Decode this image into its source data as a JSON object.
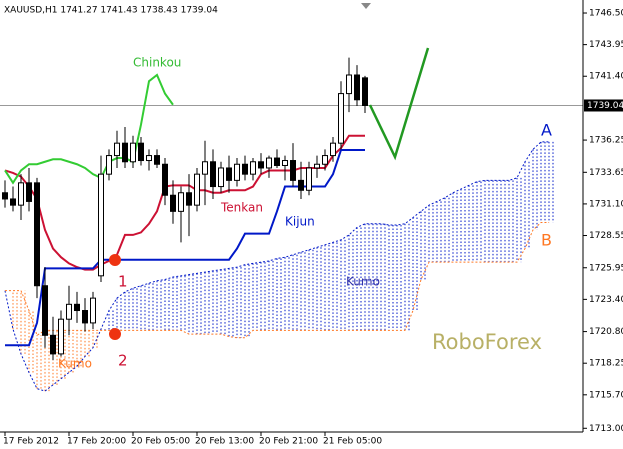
{
  "chart_data": {
    "type": "candlestick",
    "title": "XAUUSD,H1 1741.27 1741.43 1738.43 1739.04",
    "categories": [
      "17 Feb 2012",
      null,
      null,
      null,
      null,
      null,
      null,
      null,
      "17 Feb 20:00",
      null,
      null,
      null,
      null,
      null,
      null,
      null,
      "20 Feb 05:00",
      null,
      null,
      null,
      null,
      null,
      null,
      null,
      "20 Feb 13:00",
      null,
      null,
      null,
      null,
      null,
      null,
      null,
      "20 Feb 21:00",
      null,
      null,
      null,
      null,
      null,
      null,
      null,
      "21 Feb 05:00",
      null,
      null,
      null,
      null,
      null,
      null,
      null,
      null,
      null,
      null,
      null,
      null,
      null,
      null,
      null,
      null,
      null,
      null,
      null,
      null,
      null,
      null,
      null,
      null,
      null,
      null,
      null,
      null
    ],
    "candles": {
      "open": [
        1732.0,
        1731.5,
        1731.0,
        1732.8,
        1732.8,
        1724.5,
        1720.5,
        1719.0,
        1721.8,
        1723.0,
        1722.5,
        1721.5,
        1725.3,
        1733.5,
        1735.0,
        1736.0,
        1734.5,
        1736.0,
        1734.6,
        1735.0,
        1734.3,
        1731.8,
        1730.5,
        1732.0,
        1731.0,
        1733.5,
        1734.5,
        1732.5,
        1734.0,
        1733.0,
        1734.3,
        1733.5,
        1734.5,
        1734.0,
        1734.8,
        1734.2,
        1734.6,
        1733.0,
        1732.2,
        1734.0,
        1734.3,
        1735.0,
        1736.0,
        1740.0,
        1741.5,
        1741.27
      ],
      "high": [
        1733.0,
        1732.5,
        1733.5,
        1734.0,
        1733.2,
        1726.0,
        1722.0,
        1722.5,
        1724.5,
        1724.0,
        1723.5,
        1724.0,
        1735.0,
        1735.5,
        1737.0,
        1737.3,
        1736.6,
        1736.5,
        1735.5,
        1735.5,
        1734.8,
        1733.0,
        1732.5,
        1733.5,
        1734.0,
        1736.2,
        1735.5,
        1734.5,
        1735.0,
        1734.8,
        1735.0,
        1734.8,
        1735.2,
        1735.0,
        1735.5,
        1735.0,
        1736.0,
        1734.5,
        1734.5,
        1735.0,
        1735.5,
        1736.5,
        1741.0,
        1742.9,
        1742.3,
        1741.43
      ],
      "low": [
        1730.8,
        1730.5,
        1729.8,
        1730.5,
        1723.5,
        1719.5,
        1718.5,
        1718.8,
        1720.5,
        1721.5,
        1720.8,
        1721.0,
        1724.8,
        1733.0,
        1734.0,
        1734.0,
        1734.0,
        1734.2,
        1733.8,
        1734.0,
        1731.0,
        1729.5,
        1728.0,
        1728.5,
        1730.5,
        1731.0,
        1731.5,
        1732.0,
        1732.0,
        1732.5,
        1733.0,
        1733.0,
        1733.5,
        1733.2,
        1734.0,
        1733.0,
        1732.5,
        1731.5,
        1731.8,
        1733.2,
        1733.8,
        1734.5,
        1735.5,
        1738.5,
        1739.0,
        1738.43
      ],
      "close": [
        1731.5,
        1731.0,
        1732.8,
        1731.3,
        1724.5,
        1720.5,
        1719.0,
        1721.8,
        1723.0,
        1722.5,
        1721.5,
        1723.5,
        1733.5,
        1735.0,
        1736.0,
        1734.5,
        1736.0,
        1734.6,
        1735.0,
        1734.3,
        1731.8,
        1730.5,
        1732.0,
        1731.0,
        1733.5,
        1734.5,
        1732.5,
        1734.0,
        1733.0,
        1734.3,
        1733.5,
        1734.5,
        1734.0,
        1734.8,
        1734.2,
        1734.6,
        1733.0,
        1732.2,
        1734.0,
        1734.3,
        1735.0,
        1736.0,
        1740.0,
        1741.5,
        1739.5,
        1739.04
      ]
    },
    "lines": [
      {
        "name": "Tenkan",
        "color": "#cc1133",
        "values": [
          1733.8,
          1733.6,
          1733.3,
          1732.5,
          1731.5,
          1729.0,
          1727.5,
          1726.8,
          1726.3,
          1726.0,
          1725.8,
          1725.8,
          1726.2,
          1726.5,
          1727.0,
          1728.6,
          1728.6,
          1728.8,
          1729.5,
          1730.5,
          1732.5,
          1732.6,
          1732.6,
          1732.6,
          1732.2,
          1732.2,
          1732.0,
          1732.0,
          1732.2,
          1732.2,
          1732.2,
          1732.5,
          1733.5,
          1733.8,
          1733.8,
          1733.8,
          1733.8,
          1734.0,
          1734.0,
          1734.0,
          1734.0,
          1735.0,
          1735.6,
          1736.6,
          1736.6,
          1736.6
        ]
      },
      {
        "name": "Kijun",
        "color": "#0018c8",
        "values": [
          1719.7,
          1719.7,
          1719.7,
          1719.7,
          1721.5,
          1725.9,
          1725.9,
          1725.9,
          1725.9,
          1725.9,
          1725.9,
          1725.9,
          1726.6,
          1726.6,
          1726.6,
          1726.6,
          1726.6,
          1726.6,
          1726.6,
          1726.6,
          1726.6,
          1726.6,
          1726.6,
          1726.6,
          1726.6,
          1726.6,
          1726.6,
          1726.6,
          1726.6,
          1727.5,
          1728.7,
          1728.7,
          1728.7,
          1728.7,
          1730.5,
          1732.5,
          1732.5,
          1732.5,
          1732.5,
          1732.5,
          1732.5,
          1733.5,
          1735.45,
          1735.45,
          1735.45,
          1735.45
        ]
      },
      {
        "name": "Chinkou",
        "color": "#33cc33",
        "values": [
          1733.8,
          1732.8,
          1733.8,
          1734.3,
          1734.3,
          1734.5,
          1734.7,
          1734.7,
          1734.5,
          1734.3,
          1734.0,
          1733.5,
          1733.2,
          1734.5,
          1734.8,
          1734.8,
          1734.5,
          1737.5,
          1741.0,
          1741.5,
          1740.0,
          1739.1
        ]
      }
    ],
    "cloud": {
      "name": "Kumo",
      "senkou_a": {
        "name": "A",
        "color": "#0018c8",
        "values": [
          1724.1,
          1721.0,
          1719.0,
          1717.5,
          1716.2,
          1716.0,
          1716.5,
          1717.0,
          1717.5,
          1718.0,
          1718.8,
          1719.5,
          1721.0,
          1722.5,
          1723.5,
          1724.0,
          1724.3,
          1724.5,
          1724.7,
          1724.9,
          1725.0,
          1725.2,
          1725.3,
          1725.4,
          1725.5,
          1725.6,
          1725.7,
          1725.8,
          1725.9,
          1726.0,
          1726.2,
          1726.3,
          1726.4,
          1726.5,
          1726.7,
          1726.8,
          1727.0,
          1727.2,
          1727.4,
          1727.6,
          1727.8,
          1728.0,
          1728.2,
          1728.6,
          1729.2,
          1729.5,
          1729.5,
          1729.5,
          1729.4,
          1729.4,
          1729.5,
          1730.0,
          1730.5,
          1731.0,
          1731.3,
          1731.6,
          1732.0,
          1732.3,
          1732.6,
          1732.9,
          1733.0,
          1733.0,
          1733.0,
          1733.0,
          1733.2,
          1734.5,
          1735.5,
          1736.1,
          1736.1
        ]
      },
      "senkou_b": {
        "name": "B",
        "color": "#ff7722",
        "values": [
          1724.1,
          1724.1,
          1724.1,
          1722.5,
          1720.5,
          1720.9,
          1720.9,
          1720.9,
          1720.9,
          1720.9,
          1720.9,
          1720.9,
          1720.9,
          1720.9,
          1720.9,
          1720.9,
          1720.9,
          1720.9,
          1720.9,
          1720.9,
          1720.9,
          1720.9,
          1720.9,
          1720.6,
          1720.6,
          1720.6,
          1720.6,
          1720.6,
          1720.4,
          1720.3,
          1720.3,
          1720.9,
          1720.9,
          1720.9,
          1720.9,
          1720.9,
          1720.9,
          1720.9,
          1720.9,
          1720.9,
          1720.9,
          1720.9,
          1720.9,
          1720.9,
          1720.9,
          1720.9,
          1720.9,
          1720.9,
          1720.9,
          1720.9,
          1720.9,
          1722.5,
          1725.0,
          1726.4,
          1726.4,
          1726.4,
          1726.4,
          1726.4,
          1726.4,
          1726.4,
          1726.4,
          1726.4,
          1726.4,
          1726.4,
          1726.4,
          1727.5,
          1729.0,
          1729.6,
          1729.6
        ]
      }
    },
    "last_price": 1739.04,
    "annotations": [
      "1",
      "2",
      "RoboForex"
    ],
    "ylim": [
      1712.7,
      1747.55
    ],
    "yticks": [
      {
        "value": 1746.5,
        "label": "1746.50"
      },
      1743.95,
      {
        "value": 1741.4,
        "label": "1741.40"
      },
      1736.25,
      1733.65,
      {
        "value": 1731.1,
        "label": "1731.10"
      },
      1728.55,
      1725.95,
      {
        "value": 1723.4,
        "label": "1723.40"
      },
      {
        "value": 1720.8,
        "label": "1720.80"
      },
      1718.25,
      {
        "value": 1715.7,
        "label": "1715.70"
      },
      {
        "value": 1713.0,
        "label": "1713.00"
      }
    ]
  }
}
